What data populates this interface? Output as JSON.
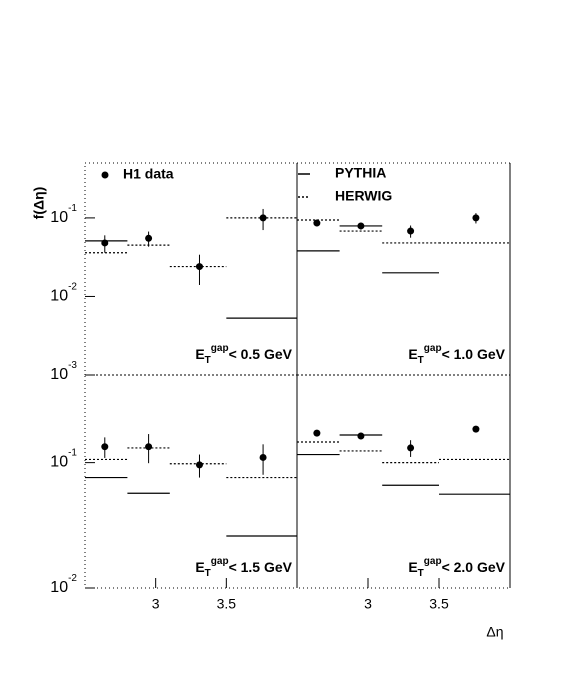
{
  "chart_data": [
    {
      "type": "scatter",
      "ylabel": "f(Δη)",
      "label": {
        "main": "E",
        "sub": "T",
        "sup": "gap",
        "rest": "< 0.5 GeV"
      },
      "xlim": [
        2.5,
        4.0
      ],
      "ylim": [
        0.001,
        0.5
      ],
      "log_y": true,
      "yticks": [
        {
          "value": 0.1,
          "label": "10",
          "exponent": "-1"
        },
        {
          "value": 0.01,
          "label": "10",
          "exponent": "-2"
        },
        {
          "value": 0.001,
          "label": "10",
          "exponent": "-3"
        }
      ],
      "x": [
        2.64,
        2.95,
        3.31,
        3.76
      ],
      "series": [
        {
          "name": "H1 data",
          "color": "#000000",
          "values": [
            0.048,
            0.055,
            0.024,
            0.1
          ],
          "errors": [
            0.012,
            0.012,
            0.01,
            0.03
          ]
        },
        {
          "name": "PYTHIA",
          "color": "#000000",
          "style": "solid",
          "bins": [
            2.5,
            2.8,
            3.1,
            3.5,
            4.0
          ],
          "values": [
            0.051,
            null,
            null,
            0.0053
          ]
        },
        {
          "name": "HERWIG",
          "color": "#000000",
          "style": "dotted",
          "bins": [
            2.5,
            2.8,
            3.1,
            3.5,
            4.0
          ],
          "values": [
            0.036,
            0.045,
            0.024,
            0.1
          ]
        }
      ]
    },
    {
      "type": "scatter",
      "label": {
        "main": "E",
        "sub": "T",
        "sup": "gap",
        "rest": "< 1.0 GeV"
      },
      "xlim": [
        2.5,
        4.0
      ],
      "ylim": [
        0.001,
        0.5
      ],
      "log_y": true,
      "x": [
        2.64,
        2.95,
        3.3,
        3.76
      ],
      "series": [
        {
          "color": "#000000",
          "values": [
            0.086,
            0.079,
            0.068,
            0.1
          ],
          "errors": [
            0.008,
            0.008,
            0.012,
            0.015
          ]
        },
        {
          "color": "#000000",
          "style": "solid",
          "bins": [
            2.5,
            2.8,
            3.1,
            3.5,
            4.0
          ],
          "values": [
            0.038,
            0.079,
            0.02,
            null
          ]
        },
        {
          "color": "#000000",
          "style": "dotted",
          "bins": [
            2.5,
            2.8,
            3.1,
            3.5,
            4.0
          ],
          "values": [
            0.094,
            0.068,
            0.048,
            0.048
          ]
        }
      ]
    },
    {
      "type": "scatter",
      "label": {
        "main": "E",
        "sub": "T",
        "sup": "gap",
        "rest": "< 1.5 GeV"
      },
      "xlim": [
        2.5,
        4.0
      ],
      "ylim": [
        0.01,
        0.5
      ],
      "log_y": true,
      "xticks": [
        3,
        3.5
      ],
      "yticks": [
        {
          "value": 0.1,
          "label": "10",
          "exponent": "-1"
        },
        {
          "value": 0.01,
          "label": "10",
          "exponent": "-2"
        }
      ],
      "x": [
        2.64,
        2.95,
        3.31,
        3.76
      ],
      "series": [
        {
          "color": "#000000",
          "values": [
            0.134,
            0.134,
            0.096,
            0.11
          ],
          "errors": [
            0.025,
            0.035,
            0.02,
            0.03
          ]
        },
        {
          "color": "#000000",
          "style": "solid",
          "bins": [
            2.5,
            2.8,
            3.1,
            3.5,
            4.0
          ],
          "values": [
            0.076,
            0.057,
            null,
            0.026
          ]
        },
        {
          "color": "#000000",
          "style": "dotted",
          "bins": [
            2.5,
            2.8,
            3.1,
            3.5,
            4.0
          ],
          "values": [
            0.106,
            0.131,
            0.098,
            0.076
          ]
        }
      ]
    },
    {
      "type": "scatter",
      "xlabel": "Δη",
      "label": {
        "main": "E",
        "sub": "T",
        "sup": "gap",
        "rest": "< 2.0 GeV"
      },
      "xlim": [
        2.5,
        4.0
      ],
      "ylim": [
        0.01,
        0.5
      ],
      "log_y": true,
      "xticks": [
        3,
        3.5
      ],
      "x": [
        2.64,
        2.95,
        3.3,
        3.76
      ],
      "series": [
        {
          "color": "#000000",
          "values": [
            0.172,
            0.163,
            0.131,
            0.185
          ],
          "errors": [
            0.01,
            0.01,
            0.02,
            0.01
          ]
        },
        {
          "color": "#000000",
          "style": "solid",
          "bins": [
            2.5,
            2.8,
            3.1,
            3.5,
            4.0
          ],
          "values": [
            0.116,
            0.166,
            0.066,
            0.056
          ]
        },
        {
          "color": "#000000",
          "style": "dotted",
          "bins": [
            2.5,
            2.8,
            3.1,
            3.5,
            4.0
          ],
          "values": [
            0.146,
            0.124,
            0.1,
            0.106
          ]
        }
      ]
    }
  ]
}
